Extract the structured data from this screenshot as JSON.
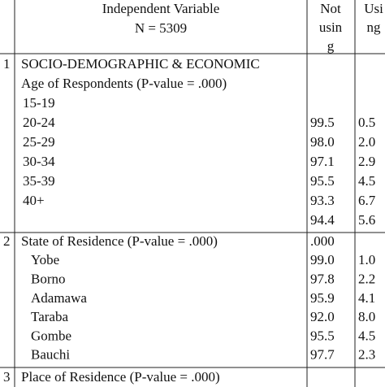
{
  "header": {
    "independent_variable": "Independent Variable",
    "n": "N = 5309",
    "not_using": [
      "Not",
      "usin",
      "g"
    ],
    "using": [
      "Usi",
      "ng"
    ]
  },
  "sections": [
    {
      "number": "1",
      "title": "SOCIO-DEMOGRAPHIC & ECONOMIC",
      "variable": "Age of Respondents (P-value = .000)",
      "rows": [
        {
          "label": "15-19"
        },
        {
          "label": "20-24",
          "not_using": "99.5",
          "using": "0.5"
        },
        {
          "label": "25-29",
          "not_using": "98.0",
          "using": "2.0"
        },
        {
          "label": "30-34",
          "not_using": "97.1",
          "using": "2.9"
        },
        {
          "label": "35-39",
          "not_using": "95.5",
          "using": "4.5"
        },
        {
          "label": "40+",
          "not_using": "93.3",
          "using": "6.7"
        },
        {
          "not_using": "94.4",
          "using": "5.6"
        }
      ]
    },
    {
      "number": "2",
      "variable": "State of Residence (P-value = .000)",
      "variable_not_using": ".000",
      "rows": [
        {
          "label": "Yobe",
          "not_using": "99.0",
          "using": "1.0"
        },
        {
          "label": "Borno",
          "not_using": "97.8",
          "using": "2.2"
        },
        {
          "label": "Adamawa",
          "not_using": "95.9",
          "using": "4.1"
        },
        {
          "label": "Taraba",
          "not_using": "92.0",
          "using": "8.0"
        },
        {
          "label": "Gombe",
          "not_using": "95.5",
          "using": "4.5"
        },
        {
          "label": "Bauchi",
          "not_using": "97.7",
          "using": "2.3"
        }
      ]
    },
    {
      "number": "3",
      "variable": "Place of Residence (P-value = .000)",
      "rows": []
    }
  ]
}
